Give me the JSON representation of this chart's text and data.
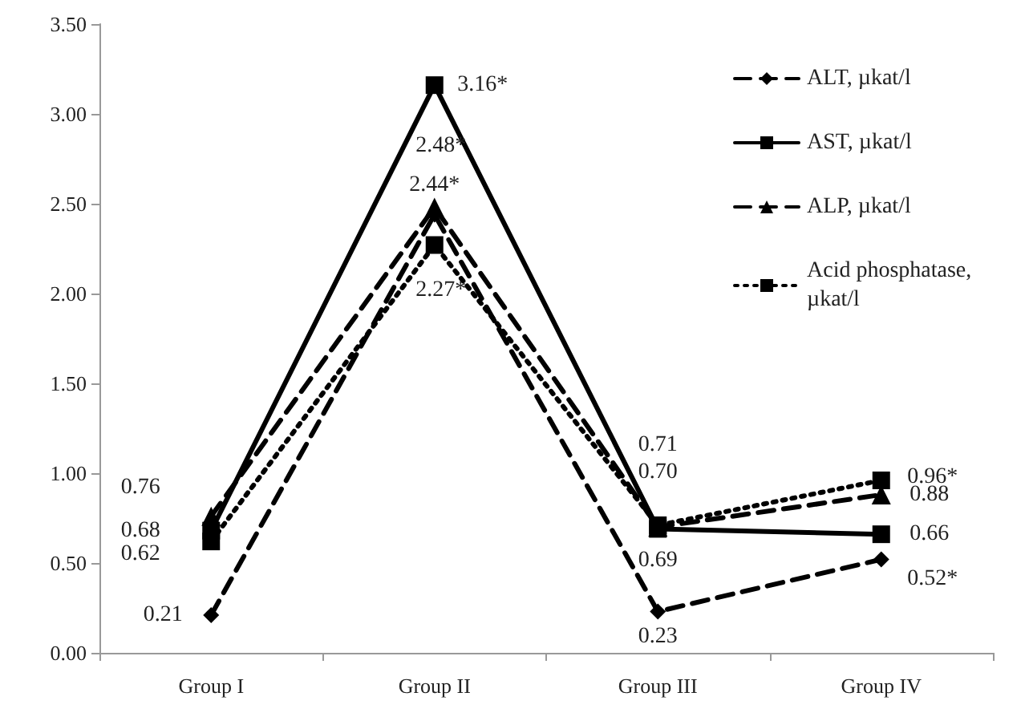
{
  "chart_data": {
    "type": "line",
    "categories": [
      "Group I",
      "Group II",
      "Group III",
      "Group IV"
    ],
    "series": [
      {
        "name": "ALT, µkat/l",
        "color": "#000000",
        "marker": "diamond",
        "line_style": "dashed",
        "values": [
          0.21,
          2.44,
          0.23,
          0.52
        ],
        "value_labels": [
          "0.21",
          "2.44*",
          "0.23",
          "0.52*"
        ]
      },
      {
        "name": "AST, µkat/l",
        "color": "#000000",
        "marker": "square",
        "line_style": "solid",
        "values": [
          0.68,
          3.16,
          0.69,
          0.66
        ],
        "value_labels": [
          "0.68",
          "3.16*",
          "0.69",
          "0.66"
        ]
      },
      {
        "name": "ALP, µkat/l",
        "color": "#000000",
        "marker": "triangle",
        "line_style": "dashed",
        "values": [
          0.76,
          2.48,
          0.7,
          0.88
        ],
        "value_labels": [
          "0.76",
          "2.48*",
          "0.70",
          "0.88"
        ]
      },
      {
        "name": "Acid phosphatase,\nµkat/l",
        "color": "#000000",
        "marker": "square",
        "line_style": "dotted",
        "values": [
          0.62,
          2.27,
          0.71,
          0.96
        ],
        "value_labels": [
          "0.62",
          "2.27*",
          "0.71",
          "0.96*"
        ]
      }
    ],
    "ylim": [
      0,
      3.5
    ],
    "yticks": [
      {
        "value": 0,
        "label": "0.00"
      },
      {
        "value": 0.5,
        "label": "0.50"
      },
      {
        "value": 1,
        "label": "1.00"
      },
      {
        "value": 1.5,
        "label": "1.50"
      },
      {
        "value": 2,
        "label": "2.00"
      },
      {
        "value": 2.5,
        "label": "2.50"
      },
      {
        "value": 3,
        "label": "3.00"
      },
      {
        "value": 3.5,
        "label": "3.50"
      }
    ],
    "grid": false,
    "legend": "top right"
  }
}
